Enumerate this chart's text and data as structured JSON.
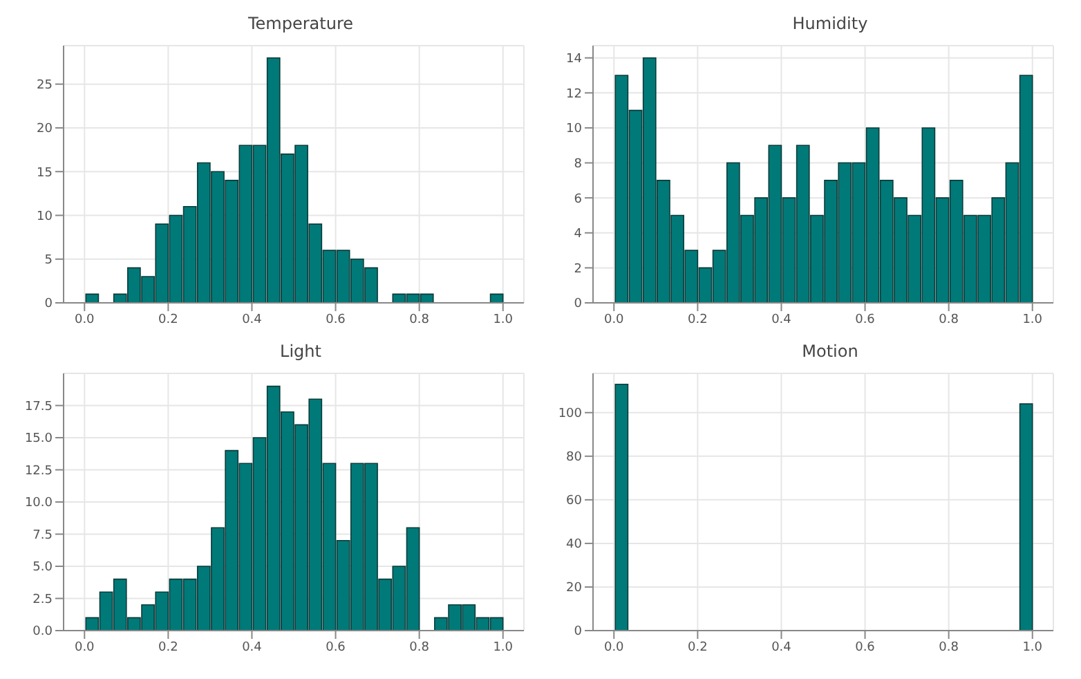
{
  "chart_data": [
    {
      "type": "histogram",
      "title": "Temperature",
      "color": "#007a78",
      "grid": true,
      "bins": [
        0,
        0.0333,
        0.0667,
        0.1,
        0.1333,
        0.1667,
        0.2,
        0.2333,
        0.2667,
        0.3,
        0.3333,
        0.3667,
        0.4,
        0.4333,
        0.4667,
        0.5,
        0.5333,
        0.5667,
        0.6,
        0.6333,
        0.6667,
        0.7,
        0.7333,
        0.7667,
        0.8,
        0.8333,
        0.8667,
        0.9,
        0.9333,
        0.9667,
        1
      ],
      "values": [
        1,
        0,
        1,
        4,
        3,
        9,
        10,
        11,
        16,
        15,
        14,
        18,
        18,
        28,
        17,
        18,
        9,
        6,
        6,
        5,
        4,
        0,
        1,
        1,
        1,
        0,
        0,
        0,
        0,
        1
      ],
      "xlim": [
        -0.05,
        1.05
      ],
      "xticks": [
        {
          "value": 0,
          "label": "0.0"
        },
        {
          "value": 0.2,
          "label": "0.2"
        },
        {
          "value": 0.4,
          "label": "0.4"
        },
        {
          "value": 0.6,
          "label": "0.6"
        },
        {
          "value": 0.8,
          "label": "0.8"
        },
        {
          "value": 1,
          "label": "1.0"
        }
      ],
      "ylim": [
        0,
        29.4
      ],
      "yticks": [
        0,
        5,
        10,
        15,
        20,
        25
      ]
    },
    {
      "type": "histogram",
      "title": "Humidity",
      "color": "#007a78",
      "grid": true,
      "bins": [
        0,
        0.0333,
        0.0667,
        0.1,
        0.1333,
        0.1667,
        0.2,
        0.2333,
        0.2667,
        0.3,
        0.3333,
        0.3667,
        0.4,
        0.4333,
        0.4667,
        0.5,
        0.5333,
        0.5667,
        0.6,
        0.6333,
        0.6667,
        0.7,
        0.7333,
        0.7667,
        0.8,
        0.8333,
        0.8667,
        0.9,
        0.9333,
        0.9667,
        1
      ],
      "values": [
        13,
        11,
        14,
        7,
        5,
        3,
        2,
        3,
        8,
        5,
        6,
        9,
        6,
        9,
        5,
        7,
        8,
        8,
        10,
        7,
        6,
        5,
        10,
        6,
        7,
        5,
        5,
        6,
        8,
        13
      ],
      "xlim": [
        -0.05,
        1.05
      ],
      "xticks": [
        {
          "value": 0,
          "label": "0.0"
        },
        {
          "value": 0.2,
          "label": "0.2"
        },
        {
          "value": 0.4,
          "label": "0.4"
        },
        {
          "value": 0.6,
          "label": "0.6"
        },
        {
          "value": 0.8,
          "label": "0.8"
        },
        {
          "value": 1,
          "label": "1.0"
        }
      ],
      "ylim": [
        0,
        14.7
      ],
      "yticks": [
        0,
        2,
        4,
        6,
        8,
        10,
        12,
        14
      ]
    },
    {
      "type": "histogram",
      "title": "Light",
      "color": "#007a78",
      "grid": true,
      "bins": [
        0,
        0.0333,
        0.0667,
        0.1,
        0.1333,
        0.1667,
        0.2,
        0.2333,
        0.2667,
        0.3,
        0.3333,
        0.3667,
        0.4,
        0.4333,
        0.4667,
        0.5,
        0.5333,
        0.5667,
        0.6,
        0.6333,
        0.6667,
        0.7,
        0.7333,
        0.7667,
        0.8,
        0.8333,
        0.8667,
        0.9,
        0.9333,
        0.9667,
        1
      ],
      "values": [
        1,
        3,
        4,
        1,
        2,
        3,
        4,
        4,
        5,
        8,
        14,
        13,
        15,
        19,
        17,
        16,
        18,
        13,
        7,
        13,
        13,
        4,
        5,
        8,
        0,
        1,
        2,
        2,
        1,
        1
      ],
      "xlim": [
        -0.05,
        1.05
      ],
      "xticks": [
        {
          "value": 0,
          "label": "0.0"
        },
        {
          "value": 0.2,
          "label": "0.2"
        },
        {
          "value": 0.4,
          "label": "0.4"
        },
        {
          "value": 0.6,
          "label": "0.6"
        },
        {
          "value": 0.8,
          "label": "0.8"
        },
        {
          "value": 1,
          "label": "1.0"
        }
      ],
      "ylim": [
        0,
        20
      ],
      "yticks": [
        {
          "value": 0,
          "label": "0.0"
        },
        {
          "value": 2.5,
          "label": "2.5"
        },
        {
          "value": 5,
          "label": "5.0"
        },
        {
          "value": 7.5,
          "label": "7.5"
        },
        {
          "value": 10,
          "label": "10.0"
        },
        {
          "value": 12.5,
          "label": "12.5"
        },
        {
          "value": 15,
          "label": "15.0"
        },
        {
          "value": 17.5,
          "label": "17.5"
        }
      ]
    },
    {
      "type": "histogram",
      "title": "Motion",
      "color": "#007a78",
      "grid": true,
      "bins": [
        0,
        0.0333,
        0.0667,
        0.1,
        0.1333,
        0.1667,
        0.2,
        0.2333,
        0.2667,
        0.3,
        0.3333,
        0.3667,
        0.4,
        0.4333,
        0.4667,
        0.5,
        0.5333,
        0.5667,
        0.6,
        0.6333,
        0.6667,
        0.7,
        0.7333,
        0.7667,
        0.8,
        0.8333,
        0.8667,
        0.9,
        0.9333,
        0.9667,
        1
      ],
      "values": [
        113,
        0,
        0,
        0,
        0,
        0,
        0,
        0,
        0,
        0,
        0,
        0,
        0,
        0,
        0,
        0,
        0,
        0,
        0,
        0,
        0,
        0,
        0,
        0,
        0,
        0,
        0,
        0,
        0,
        104
      ],
      "xlim": [
        -0.05,
        1.05
      ],
      "xticks": [
        {
          "value": 0,
          "label": "0.0"
        },
        {
          "value": 0.2,
          "label": "0.2"
        },
        {
          "value": 0.4,
          "label": "0.4"
        },
        {
          "value": 0.6,
          "label": "0.6"
        },
        {
          "value": 0.8,
          "label": "0.8"
        },
        {
          "value": 1,
          "label": "1.0"
        }
      ],
      "ylim": [
        0,
        118
      ],
      "yticks": [
        0,
        20,
        40,
        60,
        80,
        100
      ]
    }
  ]
}
